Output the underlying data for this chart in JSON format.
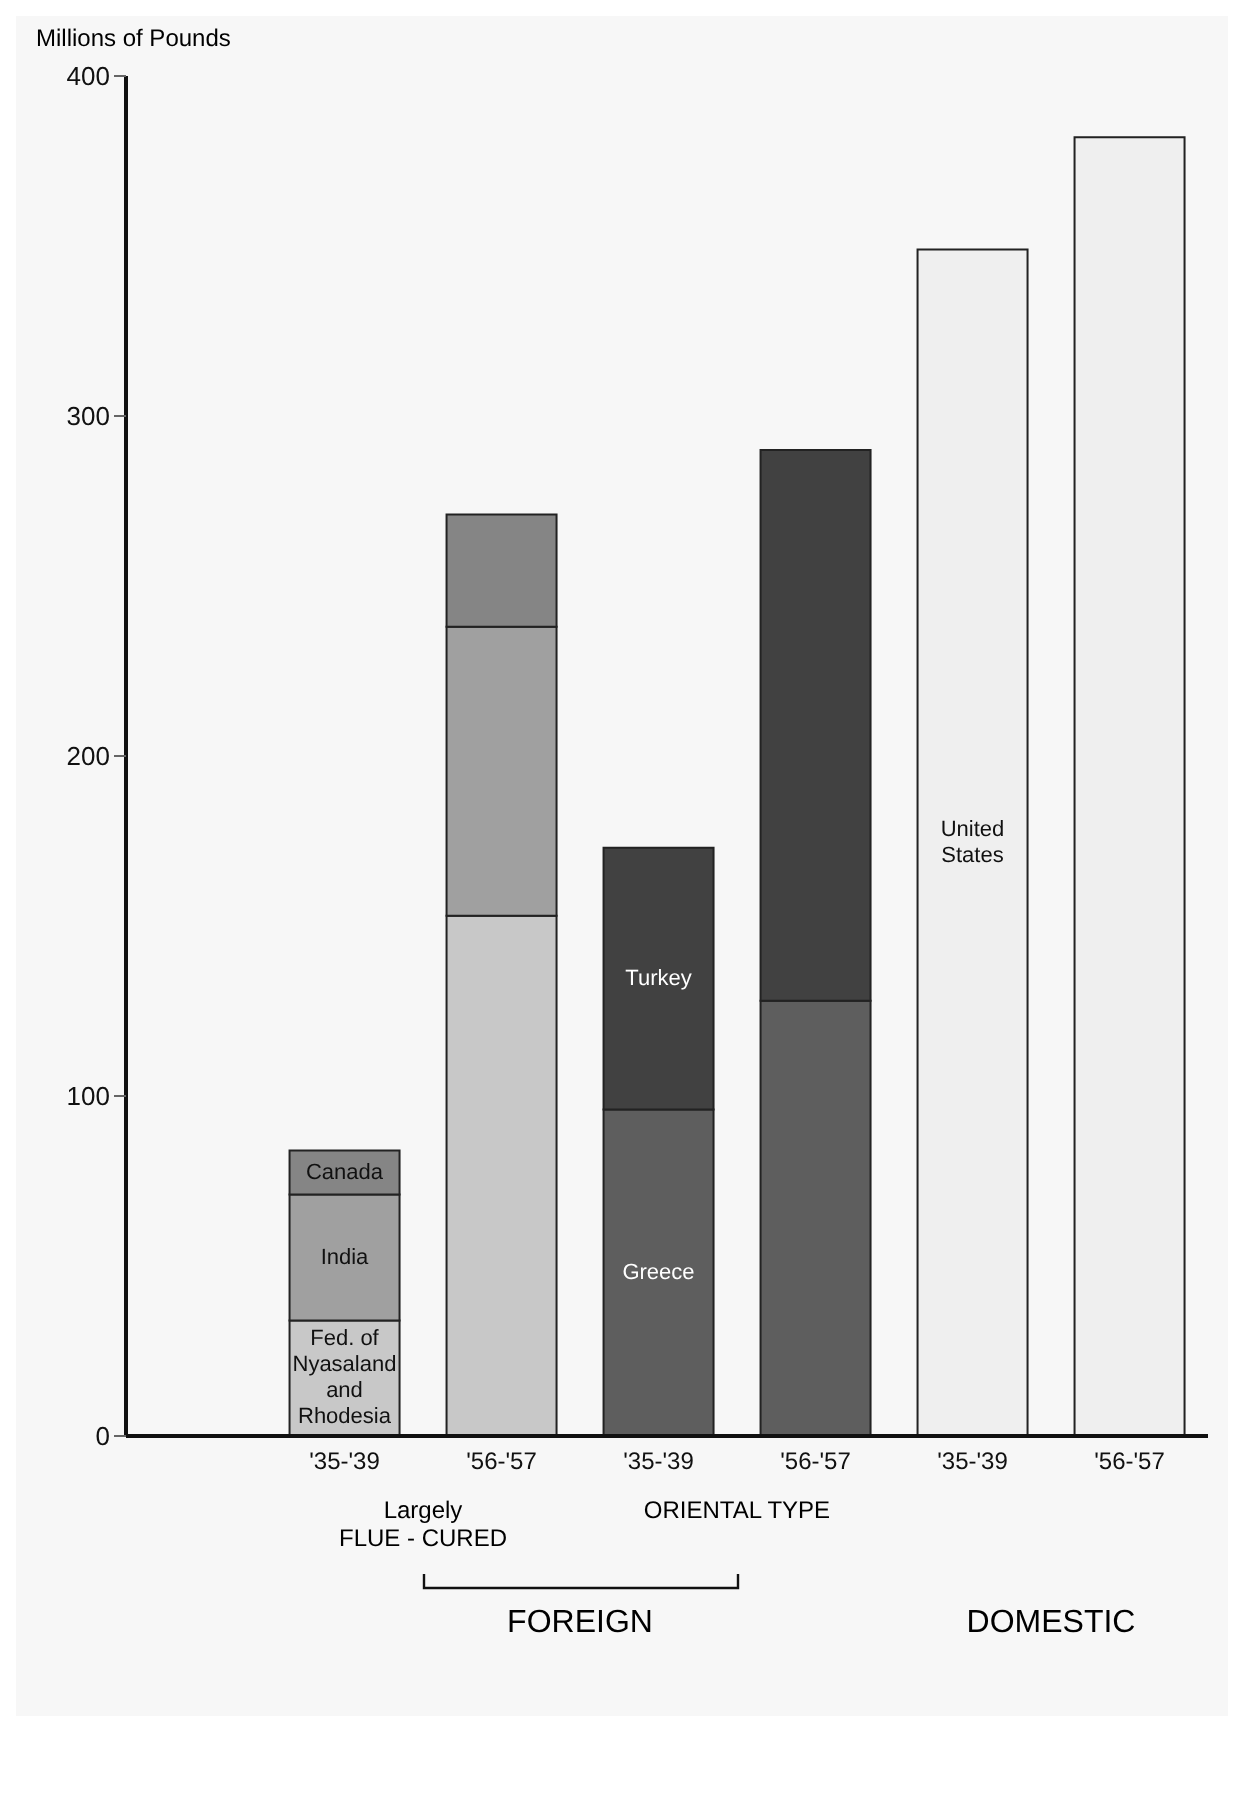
{
  "chart_data": {
    "type": "bar",
    "stacked": true,
    "ylabel": "Millions of Pounds",
    "categories": [
      "'35-'39",
      "'56-'57",
      "'35-'39",
      "'56-'57",
      "'35-'39",
      "'56-'57"
    ],
    "series": [
      {
        "name": "Fed. of Nyasaland and Rhodesia",
        "color": "#c8c8c8",
        "values": [
          34,
          153,
          null,
          null,
          null,
          null
        ]
      },
      {
        "name": "India",
        "color": "#a0a0a0",
        "values": [
          37,
          85,
          null,
          null,
          null,
          null
        ]
      },
      {
        "name": "Canada",
        "color": "#858585",
        "values": [
          13,
          33,
          null,
          null,
          null,
          null
        ]
      },
      {
        "name": "Greece",
        "color": "#5e5e5e",
        "values": [
          null,
          null,
          96,
          128,
          null,
          null
        ]
      },
      {
        "name": "Turkey",
        "color": "#414141",
        "values": [
          null,
          null,
          77,
          162,
          null,
          null
        ]
      },
      {
        "name": "United States",
        "color": "#efefef",
        "values": [
          null,
          null,
          null,
          null,
          349,
          382
        ]
      }
    ],
    "ylim": [
      0,
      400
    ],
    "yticks": [
      0,
      100,
      200,
      300,
      400
    ],
    "grid": false,
    "legend": false,
    "annotations": [
      "Largely\nFLUE - CURED",
      "ORIENTAL TYPE",
      "FOREIGN",
      "DOMESTIC"
    ]
  }
}
